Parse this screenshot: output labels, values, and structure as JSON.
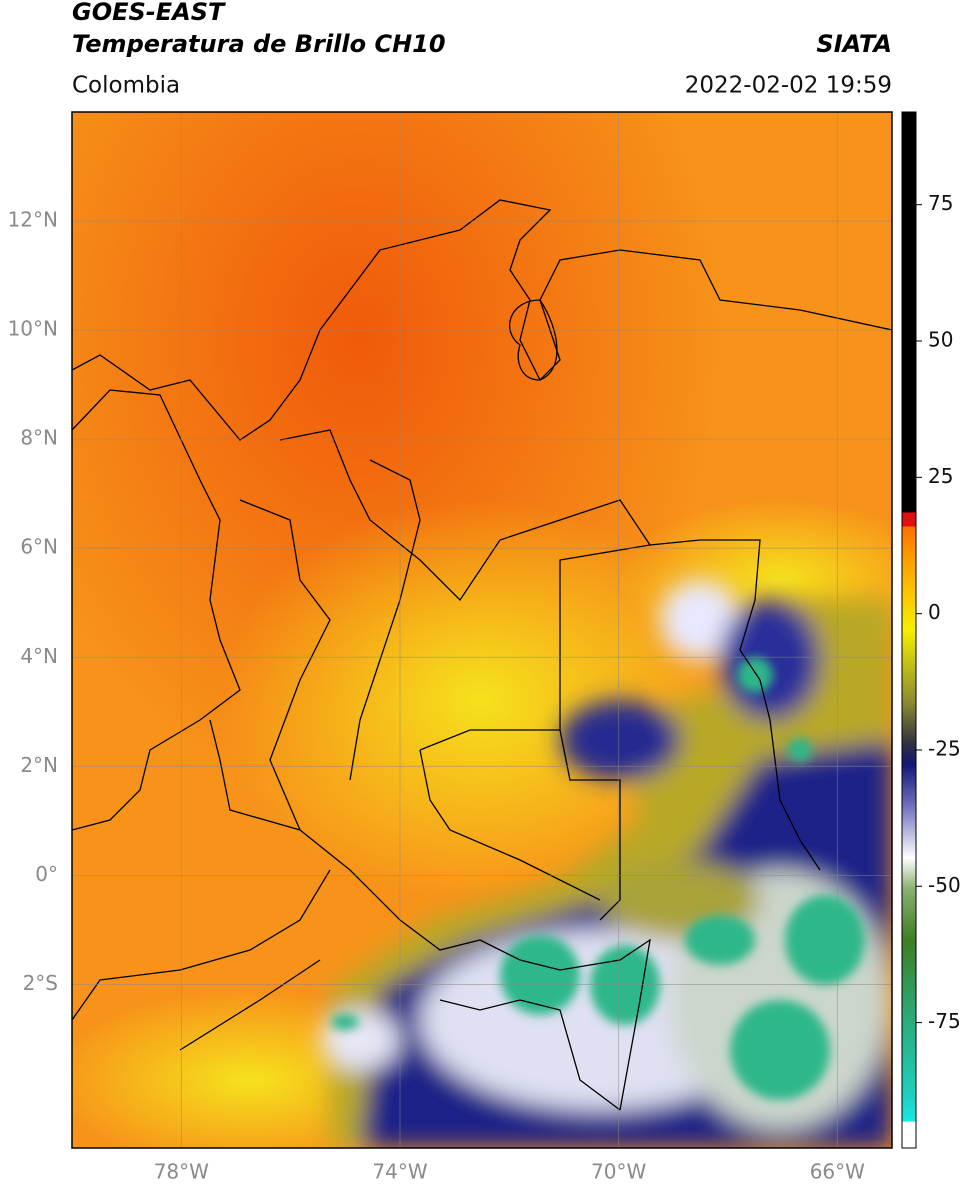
{
  "header": {
    "title_line1": "GOES-EAST",
    "title_line2": "Temperatura de Brillo CH10",
    "region": "Colombia",
    "source": "SIATA",
    "datetime": "2022-02-02 19:59"
  },
  "map": {
    "lon_range": [
      -80,
      -65
    ],
    "lat_range": [
      -5,
      14
    ],
    "lat_ticks": [
      {
        "value": 12,
        "label": "12°N"
      },
      {
        "value": 10,
        "label": "10°N"
      },
      {
        "value": 8,
        "label": "8°N"
      },
      {
        "value": 6,
        "label": "6°N"
      },
      {
        "value": 4,
        "label": "4°N"
      },
      {
        "value": 2,
        "label": "2°N"
      },
      {
        "value": 0,
        "label": "0°"
      },
      {
        "value": -2,
        "label": "2°S"
      }
    ],
    "lon_ticks": [
      {
        "value": -78,
        "label": "78°W"
      },
      {
        "value": -74,
        "label": "74°W"
      },
      {
        "value": -70,
        "label": "70°W"
      },
      {
        "value": -66,
        "label": "66°W"
      }
    ]
  },
  "colorbar": {
    "lim": [
      -98,
      92
    ],
    "ticks": [
      75,
      50,
      25,
      0,
      -25,
      -50,
      -75
    ]
  }
}
